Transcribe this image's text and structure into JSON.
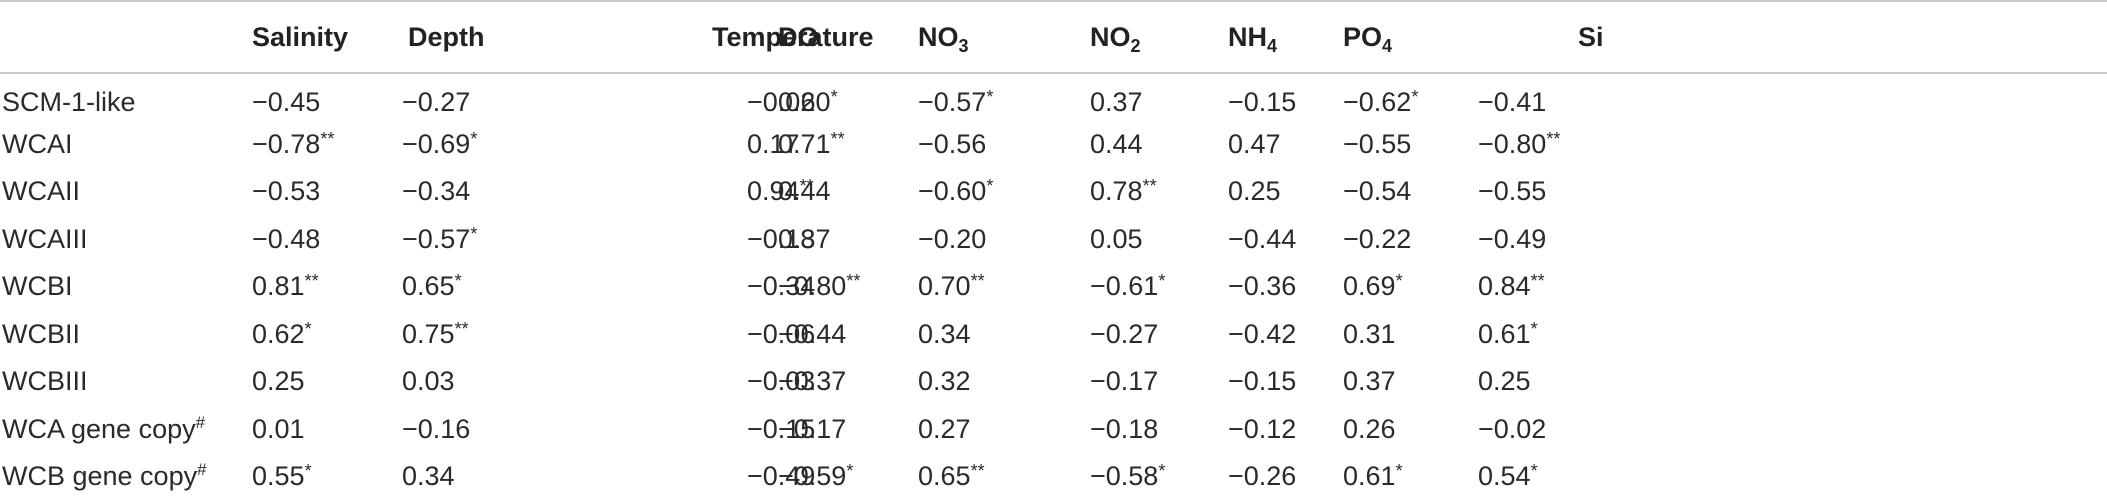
{
  "table": {
    "headers": [
      {
        "main": "",
        "sub": ""
      },
      {
        "main": "Salinity",
        "sub": ""
      },
      {
        "main": "Depth",
        "sub": ""
      },
      {
        "main": "Temperature",
        "sub": ""
      },
      {
        "main": "DO",
        "sub": ""
      },
      {
        "main": "NO",
        "sub": "3"
      },
      {
        "main": "NO",
        "sub": "2"
      },
      {
        "main": "NH",
        "sub": "4"
      },
      {
        "main": "PO",
        "sub": "4"
      },
      {
        "main": "Si",
        "sub": ""
      }
    ],
    "rows": [
      {
        "label": "SCM-1-like",
        "label_sup": "",
        "cells": [
          {
            "v": "−0.45",
            "s": ""
          },
          {
            "v": "−0.27",
            "s": ""
          },
          {
            "v": "−0.02",
            "s": ""
          },
          {
            "v": "0.60",
            "s": "*"
          },
          {
            "v": "−0.57",
            "s": "*"
          },
          {
            "v": "0.37",
            "s": ""
          },
          {
            "v": "−0.15",
            "s": ""
          },
          {
            "v": "−0.62",
            "s": "*"
          },
          {
            "v": "−0.41",
            "s": ""
          }
        ]
      },
      {
        "label": "WCAI",
        "label_sup": "",
        "cells": [
          {
            "v": "−0.78",
            "s": "**"
          },
          {
            "v": "−0.69",
            "s": "*"
          },
          {
            "v": "0.17",
            "s": ""
          },
          {
            "v": "0.71",
            "s": "**"
          },
          {
            "v": "−0.56",
            "s": ""
          },
          {
            "v": "0.44",
            "s": ""
          },
          {
            "v": "0.47",
            "s": ""
          },
          {
            "v": "−0.55",
            "s": ""
          },
          {
            "v": "−0.80",
            "s": "**"
          }
        ]
      },
      {
        "label": "WCAII",
        "label_sup": "",
        "cells": [
          {
            "v": "−0.53",
            "s": ""
          },
          {
            "v": "−0.34",
            "s": ""
          },
          {
            "v": "0.94",
            "s": "**"
          },
          {
            "v": "0.44",
            "s": ""
          },
          {
            "v": "−0.60",
            "s": "*"
          },
          {
            "v": "0.78",
            "s": "**"
          },
          {
            "v": "0.25",
            "s": ""
          },
          {
            "v": "−0.54",
            "s": ""
          },
          {
            "v": "−0.55",
            "s": ""
          }
        ]
      },
      {
        "label": "WCAIII",
        "label_sup": "",
        "cells": [
          {
            "v": "−0.48",
            "s": ""
          },
          {
            "v": "−0.57",
            "s": "*"
          },
          {
            "v": "−0.18",
            "s": ""
          },
          {
            "v": "0.37",
            "s": ""
          },
          {
            "v": "−0.20",
            "s": ""
          },
          {
            "v": "0.05",
            "s": ""
          },
          {
            "v": "−0.44",
            "s": ""
          },
          {
            "v": "−0.22",
            "s": ""
          },
          {
            "v": "−0.49",
            "s": ""
          }
        ]
      },
      {
        "label": "WCBI",
        "label_sup": "",
        "cells": [
          {
            "v": "0.81",
            "s": "**"
          },
          {
            "v": "0.65",
            "s": "*"
          },
          {
            "v": "−0.34",
            "s": ""
          },
          {
            "v": "−0.80",
            "s": "**"
          },
          {
            "v": "0.70",
            "s": "**"
          },
          {
            "v": "−0.61",
            "s": "*"
          },
          {
            "v": "−0.36",
            "s": ""
          },
          {
            "v": "0.69",
            "s": "*"
          },
          {
            "v": "0.84",
            "s": "**"
          }
        ]
      },
      {
        "label": "WCBII",
        "label_sup": "",
        "cells": [
          {
            "v": "0.62",
            "s": "*"
          },
          {
            "v": "0.75",
            "s": "**"
          },
          {
            "v": "−0.06",
            "s": ""
          },
          {
            "v": "−0.44",
            "s": ""
          },
          {
            "v": "0.34",
            "s": ""
          },
          {
            "v": "−0.27",
            "s": ""
          },
          {
            "v": "−0.42",
            "s": ""
          },
          {
            "v": "0.31",
            "s": ""
          },
          {
            "v": "0.61",
            "s": "*"
          }
        ]
      },
      {
        "label": "WCBIII",
        "label_sup": "",
        "cells": [
          {
            "v": "0.25",
            "s": ""
          },
          {
            "v": "0.03",
            "s": ""
          },
          {
            "v": "−0.03",
            "s": ""
          },
          {
            "v": "−0.37",
            "s": ""
          },
          {
            "v": "0.32",
            "s": ""
          },
          {
            "v": "−0.17",
            "s": ""
          },
          {
            "v": "−0.15",
            "s": ""
          },
          {
            "v": "0.37",
            "s": ""
          },
          {
            "v": "0.25",
            "s": ""
          }
        ]
      },
      {
        "label": "WCA gene copy",
        "label_sup": "#",
        "cells": [
          {
            "v": "0.01",
            "s": ""
          },
          {
            "v": "−0.16",
            "s": ""
          },
          {
            "v": "−0.15",
            "s": ""
          },
          {
            "v": "−0.17",
            "s": ""
          },
          {
            "v": "0.27",
            "s": ""
          },
          {
            "v": "−0.18",
            "s": ""
          },
          {
            "v": "−0.12",
            "s": ""
          },
          {
            "v": "0.26",
            "s": ""
          },
          {
            "v": "−0.02",
            "s": ""
          }
        ]
      },
      {
        "label": "WCB gene copy",
        "label_sup": "#",
        "cells": [
          {
            "v": "0.55",
            "s": "*"
          },
          {
            "v": "0.34",
            "s": ""
          },
          {
            "v": "−0.49",
            "s": ""
          },
          {
            "v": "−0.59",
            "s": "*"
          },
          {
            "v": "0.65",
            "s": "**"
          },
          {
            "v": "−0.58",
            "s": "*"
          },
          {
            "v": "−0.26",
            "s": ""
          },
          {
            "v": "0.61",
            "s": "*"
          },
          {
            "v": "0.54",
            "s": "*"
          }
        ]
      }
    ]
  }
}
